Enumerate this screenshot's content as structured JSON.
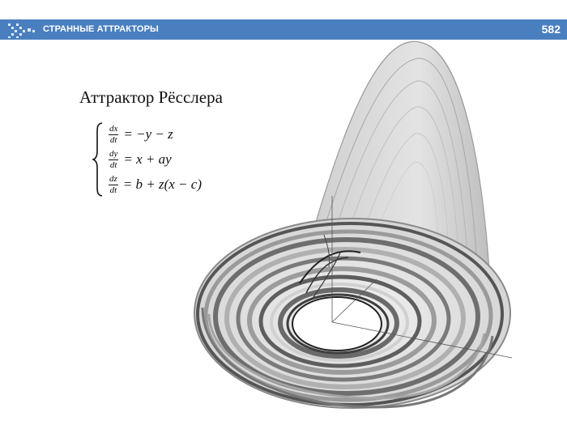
{
  "header": {
    "title": "СТРАННЫЕ АТТРАКТОРЫ",
    "page_number": "582",
    "logo_icon": "chevron-arrows-icon",
    "bar_color": "#4a7fbf"
  },
  "slide": {
    "title": "Аттрактор Рёсслера",
    "equations": [
      {
        "num": "dx",
        "den": "dt",
        "rhs": "= −y − z"
      },
      {
        "num": "dy",
        "den": "dt",
        "rhs": "= x + ay"
      },
      {
        "num": "dz",
        "den": "dt",
        "rhs": "= b + z(x − c)"
      }
    ]
  },
  "figure": {
    "name": "rossler-attractor-image"
  }
}
